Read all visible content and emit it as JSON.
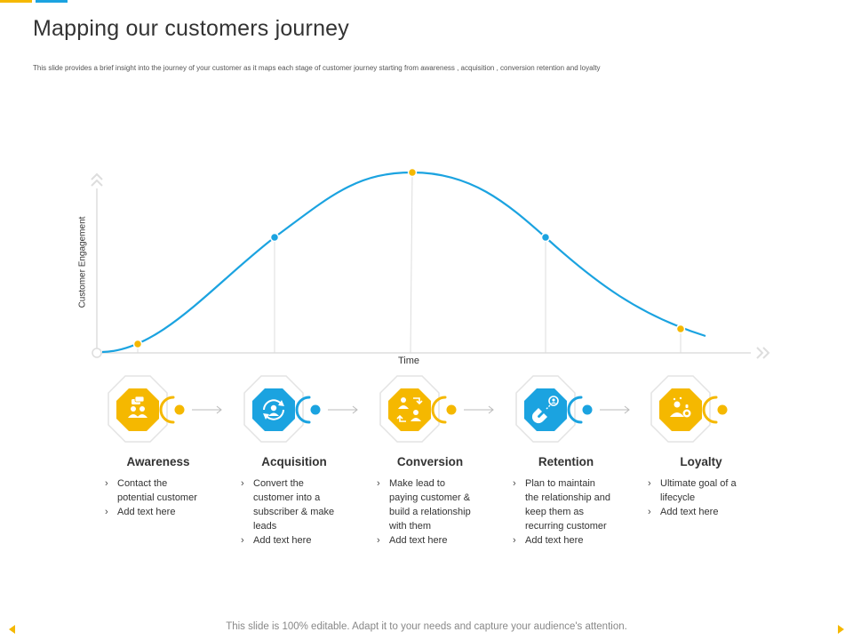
{
  "colors": {
    "blue": "#1BA3E0",
    "yellow": "#F5B800",
    "axis": "#dddddd"
  },
  "header": {
    "title": "Mapping our customers journey",
    "subtitle": "This slide provides a brief insight into the journey of your customer as it maps each stage of customer journey starting from awareness , acquisition , conversion retention and loyalty"
  },
  "chart": {
    "ylabel": "Customer Engagement",
    "xlabel": "Time"
  },
  "stages": [
    {
      "title": "Awareness",
      "color": "yellow",
      "icon": "users-chat-icon",
      "items": [
        "Contact the potential customer",
        "Add text here"
      ]
    },
    {
      "title": "Acquisition",
      "color": "blue",
      "icon": "user-cycle-icon",
      "items": [
        "Convert the customer into a subscriber & make leads",
        "Add text here"
      ]
    },
    {
      "title": "Conversion",
      "color": "yellow",
      "icon": "people-exchange-icon",
      "items": [
        "Make lead to paying customer & build a relationship with them",
        "Add text here"
      ]
    },
    {
      "title": "Retention",
      "color": "blue",
      "icon": "magnet-user-icon",
      "items": [
        "Plan to maintain the relationship and keep them as recurring customer",
        "Add text here"
      ]
    },
    {
      "title": "Loyalty",
      "color": "yellow",
      "icon": "loyal-user-icon",
      "items": [
        "Ultimate goal of a lifecycle",
        "Add text here"
      ]
    }
  ],
  "footer": {
    "note": "This slide is 100% editable. Adapt it to your needs and capture your audience's attention."
  }
}
